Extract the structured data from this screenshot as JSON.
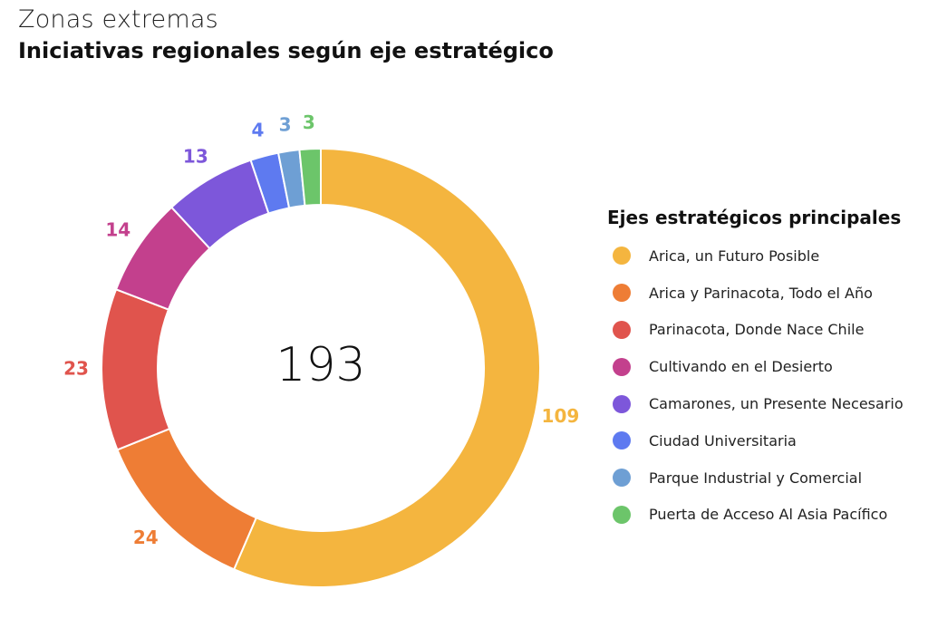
{
  "header": {
    "subtitle": "Zonas extremas",
    "title": "Iniciativas regionales según eje estratégico"
  },
  "chart_data": {
    "type": "pie",
    "variant": "donut",
    "title": "Iniciativas regionales según eje estratégico",
    "subtitle": "Zonas extremas",
    "center_label": "193",
    "legend_title": "Ejes estratégicos principales",
    "legend_position": "right",
    "categories": [
      "Arica, un Futuro Posible",
      "Arica y Parinacota, Todo el Año",
      "Parinacota, Donde Nace Chile",
      "Cultivando en el Desierto",
      "Camarones, un Presente Necesario",
      "Ciudad Universitaria",
      "Parque Industrial y Comercial",
      "Puerta de Acceso Al Asia Pacífico"
    ],
    "values": [
      109,
      24,
      23,
      14,
      13,
      4,
      3,
      3
    ],
    "colors": [
      "#F4B53F",
      "#EE7D35",
      "#E0544D",
      "#C3408D",
      "#7D57DA",
      "#5E7AF0",
      "#6E9FD4",
      "#6CC56A"
    ]
  }
}
